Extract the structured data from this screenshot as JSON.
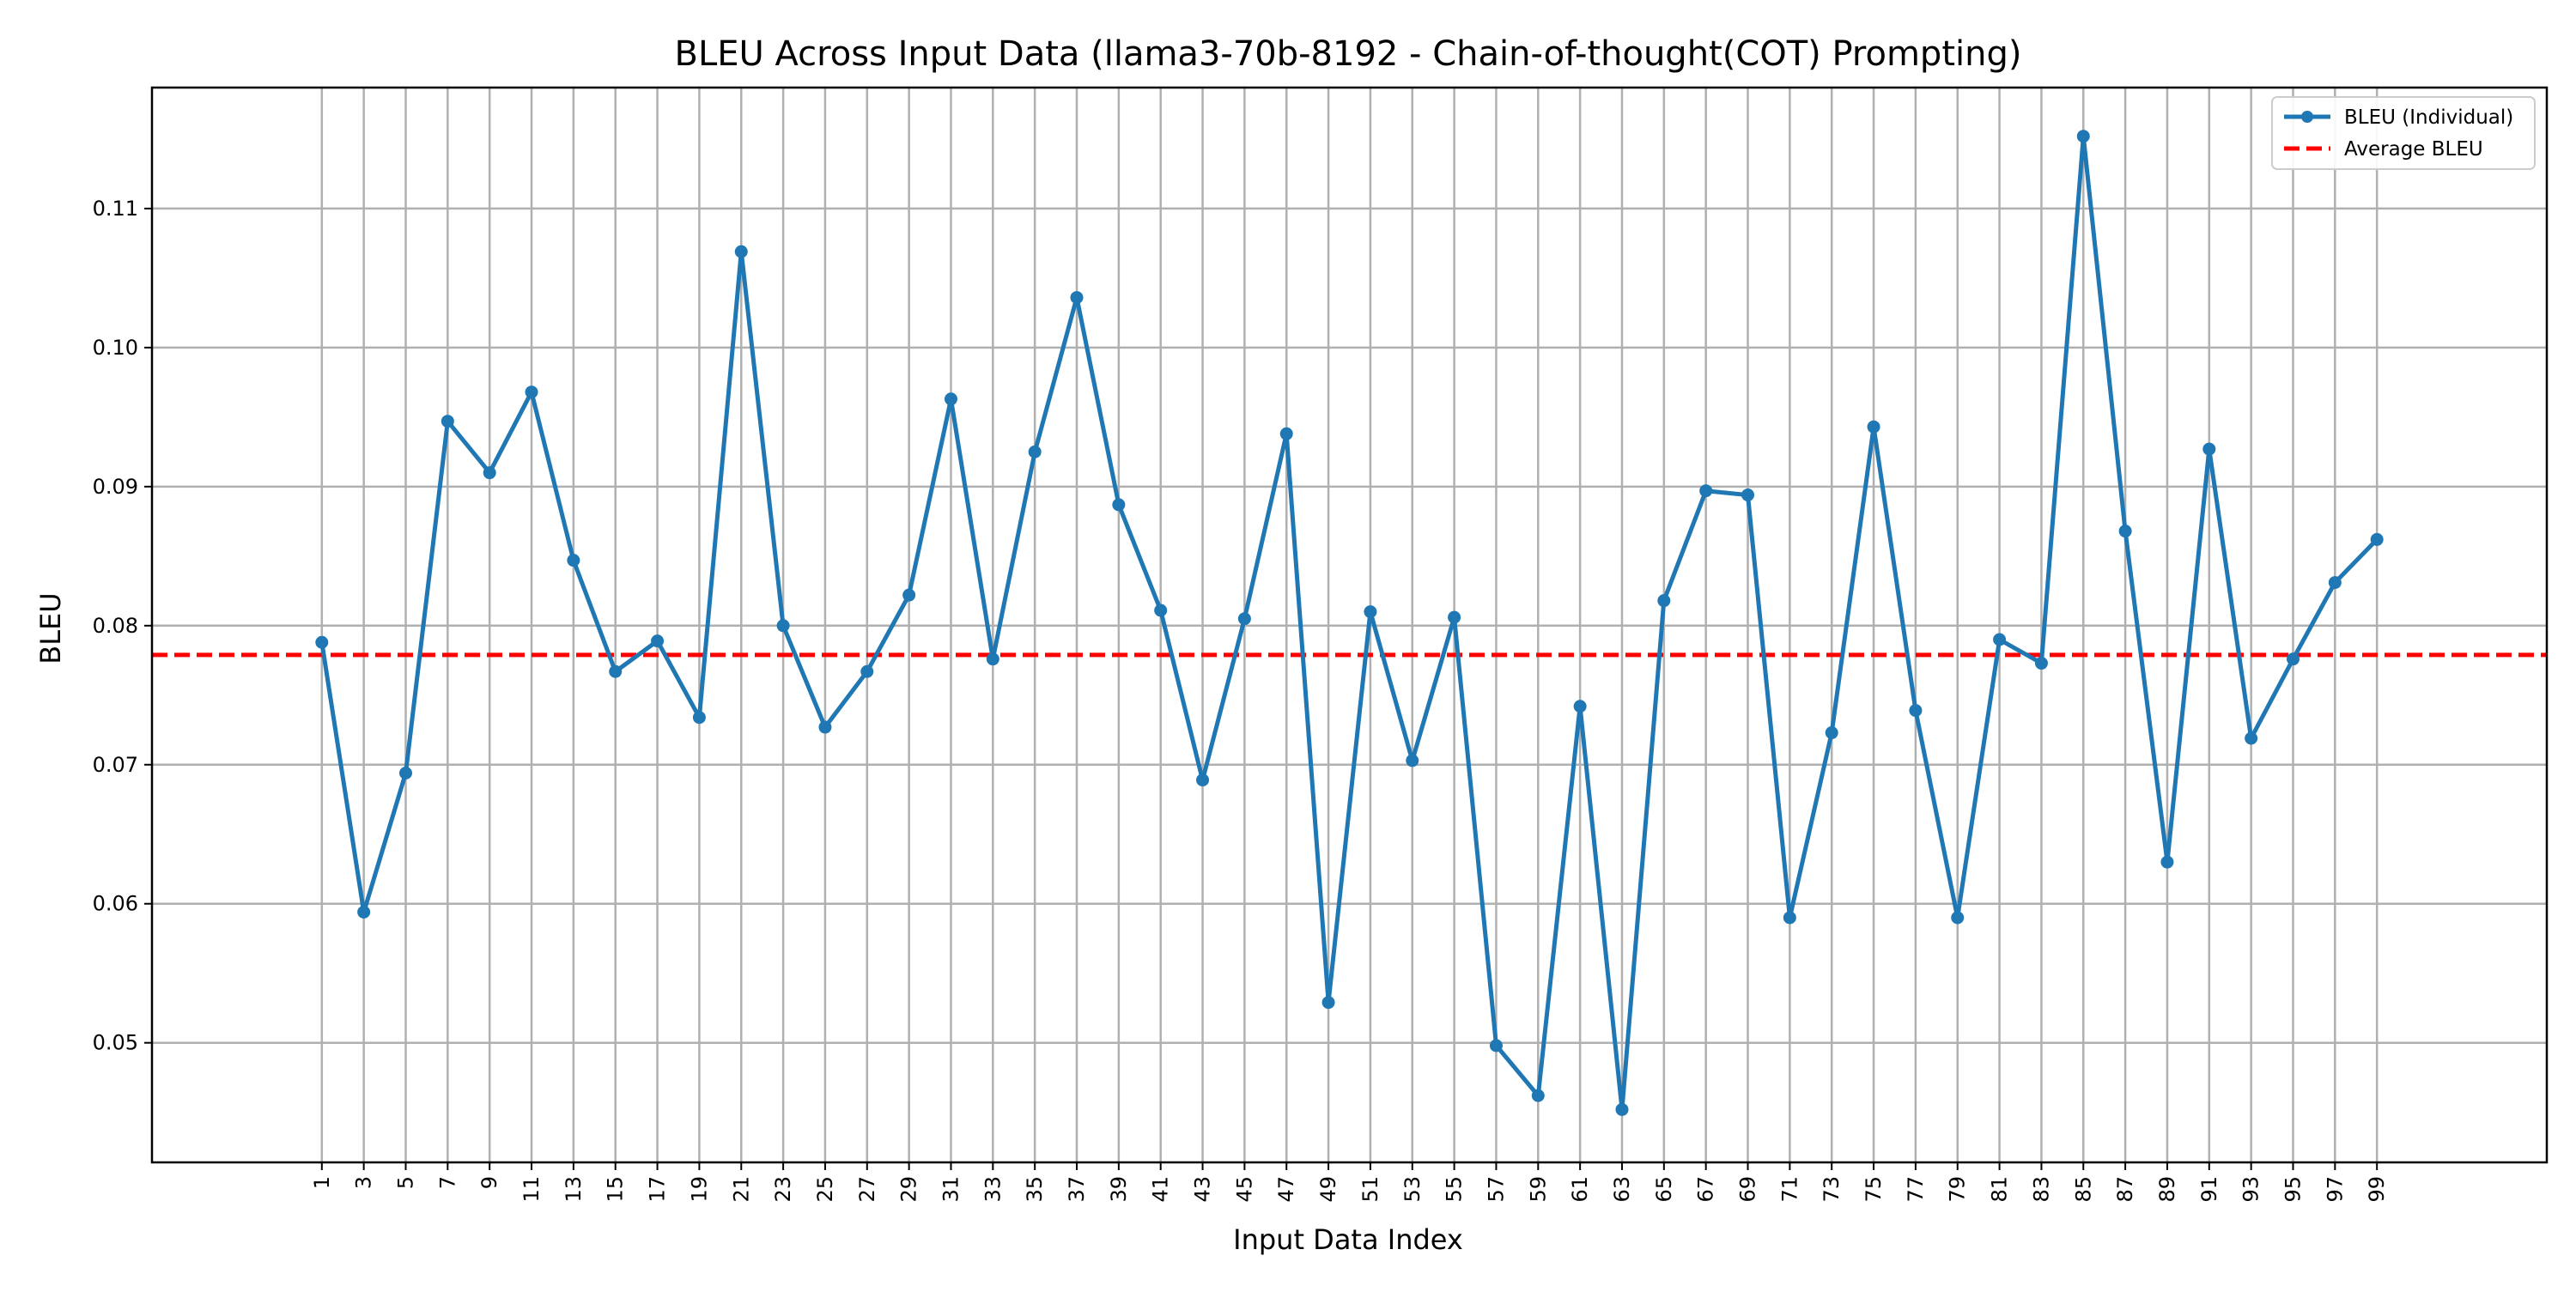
{
  "chart_data": {
    "type": "line",
    "title": "BLEU Across Input Data (llama3-70b-8192 - Chain-of-thought(COT) Prompting)",
    "xlabel": "Input Data Index",
    "ylabel": "BLEU",
    "x": [
      1,
      3,
      5,
      7,
      9,
      11,
      13,
      15,
      17,
      19,
      21,
      23,
      25,
      27,
      29,
      31,
      33,
      35,
      37,
      39,
      41,
      43,
      45,
      47,
      49,
      51,
      53,
      55,
      57,
      59,
      61,
      63,
      65,
      67,
      69,
      71,
      73,
      75,
      77,
      79,
      81,
      83,
      85,
      87,
      89,
      91,
      93,
      95,
      97,
      99
    ],
    "x_tick_labels": [
      "1",
      "3",
      "5",
      "7",
      "9",
      "11",
      "13",
      "15",
      "17",
      "19",
      "21",
      "23",
      "25",
      "27",
      "29",
      "31",
      "33",
      "35",
      "37",
      "39",
      "41",
      "43",
      "45",
      "47",
      "49",
      "51",
      "53",
      "55",
      "57",
      "59",
      "61",
      "63",
      "65",
      "67",
      "69",
      "71",
      "73",
      "75",
      "77",
      "79",
      "81",
      "83",
      "85",
      "87",
      "89",
      "91",
      "93",
      "95",
      "97",
      "99"
    ],
    "xlim": [
      -7.1,
      107.1
    ],
    "ylim": [
      0.0414,
      0.1187
    ],
    "y_ticks": [
      0.05,
      0.06,
      0.07,
      0.08,
      0.09,
      0.1,
      0.11
    ],
    "y_tick_labels": [
      "0.05",
      "0.06",
      "0.07",
      "0.08",
      "0.09",
      "0.10",
      "0.11"
    ],
    "grid": true,
    "legend_position": "top-right",
    "series": [
      {
        "name": "BLEU (Individual)",
        "color": "#1f77b4",
        "style": "solid-line-with-markers",
        "values": [
          0.0788,
          0.0594,
          0.0694,
          0.0947,
          0.091,
          0.0968,
          0.0847,
          0.0767,
          0.0789,
          0.0734,
          0.1069,
          0.08,
          0.0727,
          0.0767,
          0.0822,
          0.0963,
          0.0776,
          0.0925,
          0.1036,
          0.0887,
          0.0811,
          0.0689,
          0.0805,
          0.0938,
          0.0529,
          0.081,
          0.0703,
          0.0806,
          0.0498,
          0.0462,
          0.0742,
          0.0452,
          0.0818,
          0.0897,
          0.0894,
          0.059,
          0.0723,
          0.0943,
          0.0739,
          0.059,
          0.079,
          0.0773,
          0.1152,
          0.0868,
          0.063,
          0.0927,
          0.0719,
          0.0776,
          0.0831,
          0.0862
        ]
      },
      {
        "name": "Average BLEU",
        "color": "#ff0000",
        "style": "dashed-line",
        "value": 0.0779
      }
    ]
  }
}
